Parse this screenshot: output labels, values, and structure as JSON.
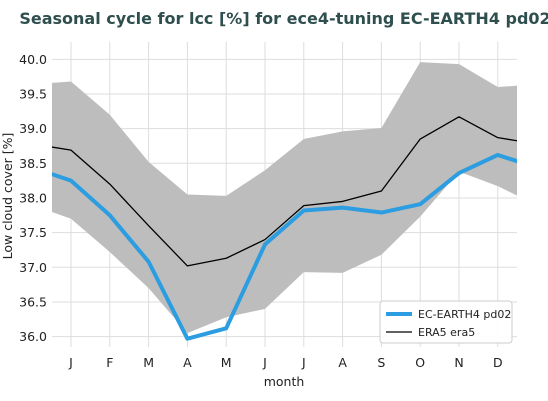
{
  "chart_data": {
    "type": "line",
    "title": "Seasonal cycle for lcc [%] for ece4-tuning EC-EARTH4 pd02",
    "xlabel": "month",
    "ylabel": "Low cloud cover [%]",
    "categories": [
      "J",
      "F",
      "M",
      "A",
      "M",
      "J",
      "J",
      "A",
      "S",
      "O",
      "N",
      "D"
    ],
    "x_padding_months": [
      "D",
      "J"
    ],
    "ylim": [
      35.85,
      40.25
    ],
    "yticks": [
      "36.0",
      "36.5",
      "37.0",
      "37.5",
      "38.0",
      "38.5",
      "39.0",
      "39.5",
      "40.0"
    ],
    "grid": true,
    "legend_position": "bottom-right",
    "series": [
      {
        "name": "EC-EARTH4 pd02",
        "color": "#2b9de0",
        "values": [
          38.25,
          37.75,
          37.08,
          35.97,
          36.12,
          37.33,
          37.82,
          37.86,
          37.79,
          37.91,
          38.36,
          38.62
        ],
        "pad_start": 38.44,
        "pad_end": 38.44
      },
      {
        "name": "ERA5 era5",
        "color": "#000000",
        "values": [
          38.69,
          38.2,
          37.6,
          37.02,
          37.13,
          37.4,
          37.89,
          37.95,
          38.1,
          38.85,
          39.17,
          38.87
        ],
        "pad_start": 38.78,
        "pad_end": 38.78
      }
    ],
    "band": {
      "color": "#bdbdbd",
      "upper": [
        39.68,
        39.2,
        38.52,
        38.05,
        38.03,
        38.4,
        38.85,
        38.96,
        39.01,
        39.96,
        39.93,
        39.6
      ],
      "lower": [
        37.7,
        37.22,
        36.7,
        36.05,
        36.28,
        36.4,
        36.93,
        36.92,
        37.18,
        37.73,
        38.38,
        38.17
      ],
      "pad_start_upper": 39.64,
      "pad_end_upper": 39.64,
      "pad_start_lower": 37.9,
      "pad_end_lower": 37.9
    }
  }
}
